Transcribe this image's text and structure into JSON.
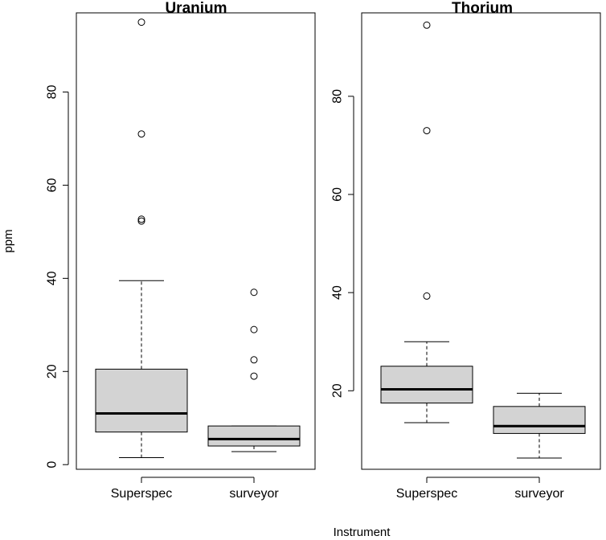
{
  "chart_data": [
    {
      "type": "box",
      "title": "Uranium",
      "ylabel": "ppm",
      "xlabel": "Instrument",
      "ylim": [
        -1,
        97
      ],
      "yticks": [
        0,
        20,
        40,
        60,
        80
      ],
      "categories": [
        "Superspec",
        "surveyor"
      ],
      "boxes": [
        {
          "category": "Superspec",
          "whisker_low": 1.5,
          "q1": 7,
          "median": 11,
          "q3": 20.5,
          "whisker_high": 39.5,
          "outliers": [
            52.3,
            52.7,
            71,
            95
          ]
        },
        {
          "category": "surveyor",
          "whisker_low": 2.8,
          "q1": 4,
          "median": 5.5,
          "q3": 8.3,
          "whisker_high": 8.3,
          "outliers": [
            19,
            22.5,
            29,
            37
          ]
        }
      ],
      "grid": false
    },
    {
      "type": "box",
      "title": "Thorium",
      "ylabel": "",
      "xlabel": "Instrument",
      "ylim": [
        4,
        97
      ],
      "yticks": [
        20,
        40,
        60,
        80
      ],
      "categories": [
        "Superspec",
        "surveyor"
      ],
      "boxes": [
        {
          "category": "Superspec",
          "whisker_low": 13.5,
          "q1": 17.5,
          "median": 20.3,
          "q3": 25,
          "whisker_high": 30,
          "outliers": [
            39.3,
            73,
            94.5
          ]
        },
        {
          "category": "surveyor",
          "whisker_low": 6.3,
          "q1": 11.3,
          "median": 12.8,
          "q3": 16.8,
          "whisker_high": 19.5,
          "outliers": []
        }
      ],
      "grid": false
    }
  ]
}
